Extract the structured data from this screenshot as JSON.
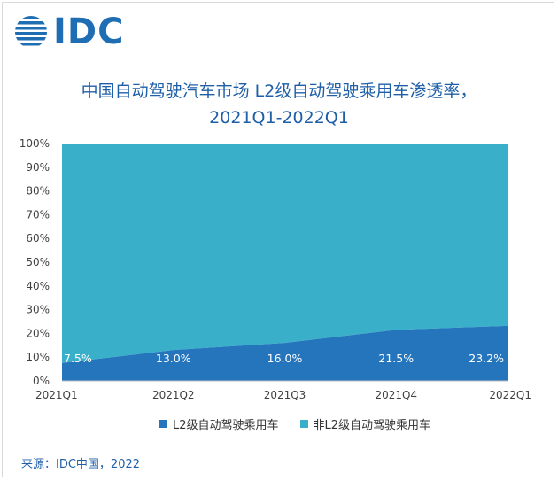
{
  "logo": {
    "text": "IDC"
  },
  "chart_data": {
    "type": "area",
    "title_line1": "中国自动驾驶汽车市场 L2级自动驾驶乘用车渗透率，",
    "title_line2": "2021Q1-2022Q1",
    "categories": [
      "2021Q1",
      "2021Q2",
      "2021Q3",
      "2021Q4",
      "2022Q1"
    ],
    "series": [
      {
        "name": "L2级自动驾驶乘用车",
        "values": [
          7.5,
          13.0,
          16.0,
          21.5,
          23.2
        ],
        "labels": [
          "7.5%",
          "13.0%",
          "16.0%",
          "21.5%",
          "23.2%"
        ],
        "color": "#2575bd"
      },
      {
        "name": "非L2级自动驾驶乘用车",
        "values": [
          92.5,
          87.0,
          84.0,
          78.5,
          76.8
        ],
        "color": "#3aafc9"
      }
    ],
    "stacked": true,
    "ylim": [
      0,
      100
    ],
    "yticks": [
      "0%",
      "10%",
      "20%",
      "30%",
      "40%",
      "50%",
      "60%",
      "70%",
      "80%",
      "90%",
      "100%"
    ],
    "legend_position": "bottom"
  },
  "source": "来源：IDC中国，2022"
}
